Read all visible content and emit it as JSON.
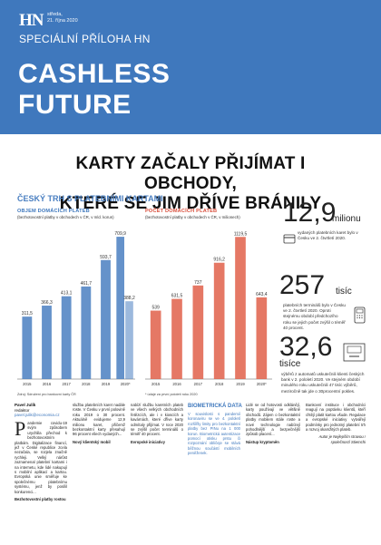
{
  "masthead": {
    "logo": "HN",
    "date_line1": "středa,",
    "date_line2": "21. října 2020",
    "supplement": "SPECIÁLNÍ PŘÍLOHA HN",
    "title_line1": "CASHLESS",
    "title_line2": "FUTURE"
  },
  "headline": {
    "line1": "KARTY ZAČALY PŘIJÍMAT I OBCHODY,",
    "line2": "KTERÉ SE JIM DŘÍVE BRÁNILY"
  },
  "section_title": "ČESKÝ TRH S PLATEBNÍMI KARTAMI",
  "chart_data": [
    {
      "type": "bar",
      "title": "OBJEM DOMÁCÍCH PLATEB",
      "subtitle": "(bezhotovostní platby v obchodech v ČR, v mld. korun)",
      "categories": [
        "2015",
        "2016",
        "2017",
        "2018",
        "2019",
        "2020*"
      ],
      "values": [
        311.5,
        366.3,
        413.1,
        461.7,
        593.7,
        709.9
      ],
      "extra_bar": {
        "category": "2020*",
        "value": 388.2
      },
      "color": "#4a7fc1"
    },
    {
      "type": "bar",
      "title": "POČET DOMÁCÍCH PLATEB",
      "subtitle": "(bezhotovostní platby v obchodech v ČR, v milionech)",
      "categories": [
        "2015",
        "2016",
        "2017",
        "2018",
        "2019",
        "2020*"
      ],
      "values": [
        539,
        631.5,
        737,
        916.2,
        1119.5,
        643.4
      ],
      "color": "#e0604a"
    }
  ],
  "chart_notes": {
    "source": "Zdroj: Sdružení pro bankovní karty ČR",
    "footnote": "* údaje za první pololetí roku 2020"
  },
  "stats": [
    {
      "number": "12,9",
      "unit": "milionu",
      "desc": "vydaných platebních karet bylo v Česku ve 2. čtvrtletí 2020."
    },
    {
      "number": "257",
      "unit": "tisíc",
      "desc": "platebních terminálů bylo v Česku ve 2. čtvrtletí 2020. Oproti stejnému období předchozího roku se jejich počet zvýšil o téměř 40 procent."
    },
    {
      "number": "32,6",
      "unit": "tisíce",
      "desc": "výběrů z automatů uskutečnili klienti českých bank v 2. pololetí 2020. Ve stejném období minulého roku uskutečnili 47 tisíc výběrů, meziročně tak jde o 30procentní pokles."
    }
  ],
  "author": {
    "name": "Pavel Julík",
    "role": "redaktor",
    "contact": "pavel.julik@economia.cz"
  },
  "bio_heading": "BIOMETRICKÁ DATA",
  "articles": {
    "col1": "andemie covidu-19 svým způsobem urychlila přechod k bezhotovostním platbám. Digitalizace financí, jež v České republice zcela nezačala, se rozjela značně rychleji. Velký nárůst zaznamenal platební kartami i na internetu, kde lidé nakupují s mobilní aplikací a kartou. Evropská unie směřuje ke společnému platebnímu systému, jenž by posílil konkurenci...",
    "col1_heading": "Bezhotovostní platby rostou",
    "col2": "služba platebních karet nadále roste. V Česku v první polovině roku 2019 o 30 procent. Aktuálně evidujeme 12,9 milionu karet, přičemž bezkontaktní karty přesahují 96 procent všech vydaných...",
    "col2_heading": "Nový klientský mobil",
    "col3": "nabízí službu karetních plateb ve všech velkých obchodních řetězcích, ale i v kioscích a kavárnách, které dříve karty odmítaly přijímat. V roce 2020 se zvýšil počet terminálů o téměř 40 procent.",
    "col3_heading": "Evropské iniciativy",
    "col4": "V souvislosti s pandemií koronaviru se ve 4. pololetí rozšířily limity pro bezkontaktní platby bez PINu na 1 000 korun. Biometrická autentizace pomocí otisku prstu či rozpoznání obličeje se stává běžnou součástí mobilních peněženek.",
    "col5": "Lidé se od hotovosti odklánějí, karty používají ve většině obchodů. Zájem o bezkontaktní platby mobilem stále roste a nové technologie nabízejí pohodlnější a bezpečnější způsob placení...",
    "col5_heading": "Nástup kryptoměn",
    "col6": "Bankovní instituce i obchodníci reagují na poptávku klientů, kteří chtějí platit kartou všude. Regulace a evropské iniciativy vytvářejí podmínky pro jednotný platební trh a rozvoj okamžitých plateb.",
    "col6_sign": "Autor je Nejlepším stravou / společností Stiemchi"
  }
}
